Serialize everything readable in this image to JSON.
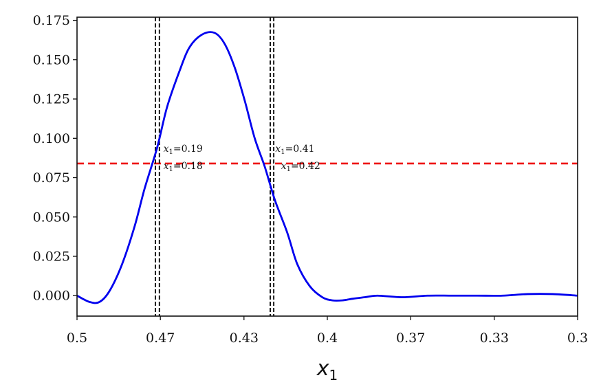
{
  "chart_data": {
    "type": "line",
    "title": "",
    "xlabel": "x",
    "xlabel_subscript": "1",
    "ylabel": "",
    "x_axis_reversed": true,
    "xlim": [
      0.5,
      0.3
    ],
    "ylim": [
      -0.013,
      0.177
    ],
    "x_ticks": [
      {
        "value": 0.5,
        "label": "0.5"
      },
      {
        "value": 0.4667,
        "label": "0.47"
      },
      {
        "value": 0.4333,
        "label": "0.43"
      },
      {
        "value": 0.4,
        "label": "0.4"
      },
      {
        "value": 0.3667,
        "label": "0.37"
      },
      {
        "value": 0.3333,
        "label": "0.33"
      },
      {
        "value": 0.3,
        "label": "0.3"
      }
    ],
    "y_ticks": [
      {
        "value": 0.0,
        "label": "0.000"
      },
      {
        "value": 0.025,
        "label": "0.025"
      },
      {
        "value": 0.05,
        "label": "0.050"
      },
      {
        "value": 0.075,
        "label": "0.075"
      },
      {
        "value": 0.1,
        "label": "0.100"
      },
      {
        "value": 0.125,
        "label": "0.125"
      },
      {
        "value": 0.15,
        "label": "0.150"
      },
      {
        "value": 0.175,
        "label": "0.175"
      }
    ],
    "grid": false,
    "series": [
      {
        "color": "#0000ee",
        "x": [
          0.5,
          0.495,
          0.491,
          0.487,
          0.482,
          0.477,
          0.473,
          0.468,
          0.464,
          0.459,
          0.455,
          0.45,
          0.445,
          0.441,
          0.437,
          0.433,
          0.429,
          0.425,
          0.421,
          0.416,
          0.412,
          0.407,
          0.402,
          0.398,
          0.394,
          0.39,
          0.385,
          0.38,
          0.37,
          0.36,
          0.35,
          0.34,
          0.33,
          0.32,
          0.31,
          0.3
        ],
        "y": [
          0.0,
          -0.004,
          -0.004,
          0.003,
          0.02,
          0.044,
          0.068,
          0.094,
          0.12,
          0.143,
          0.158,
          0.166,
          0.167,
          0.16,
          0.145,
          0.124,
          0.1,
          0.082,
          0.061,
          0.04,
          0.02,
          0.006,
          -0.001,
          -0.003,
          -0.003,
          -0.002,
          -0.001,
          0.0,
          -0.001,
          0.0,
          0.0,
          0.0,
          0.0,
          0.001,
          0.001,
          0.0
        ]
      }
    ],
    "reference_lines": [
      {
        "orientation": "horizontal",
        "value": 0.084,
        "color": "#ee1111",
        "style": "dashed"
      },
      {
        "orientation": "vertical",
        "value": 0.4687,
        "color": "#000000",
        "style": "dashed"
      },
      {
        "orientation": "vertical",
        "value": 0.4671,
        "color": "#000000",
        "style": "dashed"
      },
      {
        "orientation": "vertical",
        "value": 0.4228,
        "color": "#000000",
        "style": "dashed"
      },
      {
        "orientation": "vertical",
        "value": 0.4214,
        "color": "#000000",
        "style": "dashed"
      }
    ],
    "annotations": [
      {
        "var": "x",
        "sub": "1",
        "text": "=0.19",
        "x": 0.4655,
        "y": 0.0915
      },
      {
        "var": "x",
        "sub": "1",
        "text": "=0.18",
        "x": 0.4655,
        "y": 0.0805
      },
      {
        "var": "x",
        "sub": "1",
        "text": "=0.41",
        "x": 0.4208,
        "y": 0.0915
      },
      {
        "var": "x",
        "sub": "1",
        "text": "=0.42",
        "x": 0.4185,
        "y": 0.0805
      }
    ]
  }
}
